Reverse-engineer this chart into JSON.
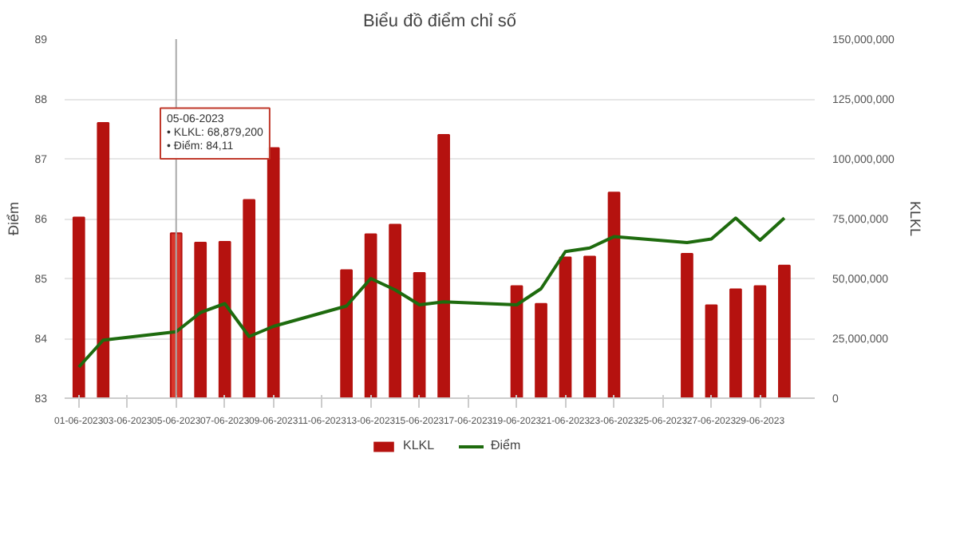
{
  "chart_data": {
    "type": "bar",
    "title": "Biểu đồ điểm chỉ số",
    "ylabel": "Điểm",
    "y2label": "KLKL",
    "x": [
      "2023-06-01",
      "2023-06-02",
      "2023-06-05",
      "2023-06-06",
      "2023-06-07",
      "2023-06-08",
      "2023-06-09",
      "2023-06-12",
      "2023-06-13",
      "2023-06-14",
      "2023-06-15",
      "2023-06-16",
      "2023-06-19",
      "2023-06-20",
      "2023-06-21",
      "2023-06-22",
      "2023-06-23",
      "2023-06-26",
      "2023-06-27",
      "2023-06-28",
      "2023-06-29",
      "2023-06-30"
    ],
    "series": [
      {
        "name": "KLKL",
        "axis": "y2",
        "color": "#b5120f",
        "colors": [
          "#b5120f",
          "#b5120f",
          "#d9362b",
          "#b5120f",
          "#b5120f",
          "#b5120f",
          "#b5120f",
          "#b5120f",
          "#b5120f",
          "#b5120f",
          "#b5120f",
          "#b5120f",
          "#b5120f",
          "#b5120f",
          "#b5120f",
          "#b5120f",
          "#b5120f",
          "#b5120f",
          "#b5120f",
          "#b5120f",
          "#b5120f",
          "#b5120f"
        ],
        "values": [
          75500000,
          115000000,
          68879200,
          65000000,
          65300000,
          82800000,
          104500000,
          53500000,
          68500000,
          72500000,
          52300000,
          110000000,
          46800000,
          39400000,
          58800000,
          59200000,
          85900000,
          60300000,
          38800000,
          45500000,
          46800000,
          55400000
        ]
      },
      {
        "name": "Điểm",
        "type": "line",
        "color": "#1e6b0e",
        "values": [
          83.52,
          83.97,
          84.11,
          84.43,
          84.58,
          84.03,
          84.2,
          84.54,
          85.0,
          84.81,
          84.56,
          84.61,
          84.56,
          84.83,
          85.45,
          85.51,
          85.7,
          85.6,
          85.66,
          86.01,
          85.64,
          86.01
        ]
      }
    ],
    "xlim": [
      "2023-05-31T10:00",
      "2023-07-01T06:00"
    ],
    "xticks": [
      {
        "value": "2023-06-01",
        "label": "01-06-2023"
      },
      {
        "value": "2023-06-03",
        "label": "03-06-2023"
      },
      {
        "value": "2023-06-05",
        "label": "05-06-2023"
      },
      {
        "value": "2023-06-07",
        "label": "07-06-2023"
      },
      {
        "value": "2023-06-09",
        "label": "09-06-2023"
      },
      {
        "value": "2023-06-11",
        "label": "11-06-2023"
      },
      {
        "value": "2023-06-13",
        "label": "13-06-2023"
      },
      {
        "value": "2023-06-15",
        "label": "15-06-2023"
      },
      {
        "value": "2023-06-17",
        "label": "17-06-2023"
      },
      {
        "value": "2023-06-19",
        "label": "19-06-2023"
      },
      {
        "value": "2023-06-21",
        "label": "21-06-2023"
      },
      {
        "value": "2023-06-23",
        "label": "23-06-2023"
      },
      {
        "value": "2023-06-25",
        "label": "25-06-2023"
      },
      {
        "value": "2023-06-27",
        "label": "27-06-2023"
      },
      {
        "value": "2023-06-29",
        "label": "29-06-2023"
      }
    ],
    "ylim": [
      83,
      89
    ],
    "yticks": [
      83,
      84,
      85,
      86,
      87,
      88,
      89
    ],
    "y2lim": [
      0,
      150000000
    ],
    "y2ticks": [
      0,
      {
        "value": 25000000,
        "label": "25,000,000"
      },
      {
        "value": 50000000,
        "label": "50,000,000"
      },
      {
        "value": 75000000,
        "label": "75,000,000"
      },
      {
        "value": 100000000,
        "label": "100,000,000"
      },
      {
        "value": 125000000,
        "label": "125,000,000"
      },
      {
        "value": 150000000,
        "label": "150,000,000"
      }
    ],
    "ref_lines": [
      {
        "axis": "x",
        "value": "2023-06-05",
        "color": "#aaaaaa"
      }
    ],
    "annotations": [
      "05-06-2023\n• KLKL: 68,879,200\n• Điểm: 84,11"
    ],
    "grid": "y",
    "legend": "bottom",
    "marker": "none",
    "line_style": "solid"
  }
}
